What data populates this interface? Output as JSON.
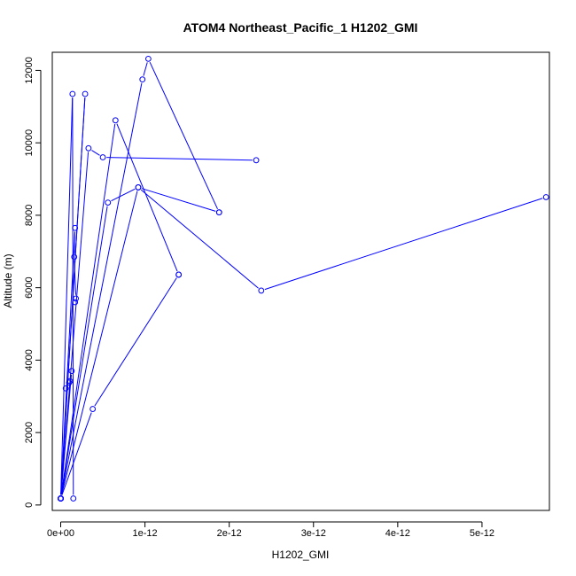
{
  "chart_data": {
    "type": "line",
    "title": "ATOM4 Northeast_Pacific_1 H1202_GMI",
    "xlabel": "H1202_GMI",
    "ylabel": "Altitude (m)",
    "xlim": [
      -1e-13,
      5.8e-12
    ],
    "ylim": [
      -150,
      12500
    ],
    "x_ticks": [
      {
        "value": 0,
        "label": "0e+00"
      },
      {
        "value": 1e-12,
        "label": "1e-12"
      },
      {
        "value": 2e-12,
        "label": "2e-12"
      },
      {
        "value": 3e-12,
        "label": "3e-12"
      },
      {
        "value": 4e-12,
        "label": "4e-12"
      },
      {
        "value": 5e-12,
        "label": "5e-12"
      }
    ],
    "y_ticks": [
      {
        "value": 0,
        "label": "0"
      },
      {
        "value": 2000,
        "label": "2000"
      },
      {
        "value": 4000,
        "label": "4000"
      },
      {
        "value": 6000,
        "label": "6000"
      },
      {
        "value": 8000,
        "label": "8000"
      },
      {
        "value": 10000,
        "label": "10000"
      },
      {
        "value": 12000,
        "label": "12000"
      }
    ],
    "grid": false,
    "legend": "none",
    "color": "#0000ff",
    "series": [
      {
        "x": [
          0,
          1.4e-13,
          1.5e-13
        ],
        "y": [
          180,
          11350,
          180
        ]
      },
      {
        "x": [
          0,
          2.9e-13,
          0.0
        ],
        "y": [
          180,
          11350,
          180
        ]
      },
      {
        "x": [
          0,
          9.7e-13,
          1.04e-12,
          1.88e-12
        ],
        "y": [
          180,
          11750,
          12320,
          8080
        ]
      },
      {
        "x": [
          0,
          6.5e-13,
          1.4e-12
        ],
        "y": [
          180,
          10620,
          6360
        ]
      },
      {
        "x": [
          0,
          3.3e-13,
          5e-13,
          2.32e-12
        ],
        "y": [
          180,
          9850,
          9600,
          9520
        ]
      },
      {
        "x": [
          0,
          5.6e-13,
          9.2e-13,
          1.88e-12
        ],
        "y": [
          180,
          8350,
          8770,
          8080
        ]
      },
      {
        "x": [
          0,
          9.2e-13,
          2.38e-12,
          5.76e-12
        ],
        "y": [
          180,
          8770,
          5920,
          8500
        ]
      },
      {
        "x": [
          0,
          1.7e-13,
          1.6e-13,
          1.8e-13,
          1.7e-13
        ],
        "y": [
          180,
          7650,
          6850,
          5700,
          5600
        ]
      },
      {
        "x": [
          0,
          1.3e-13,
          1.1e-13,
          1e-13,
          6e-14
        ],
        "y": [
          180,
          3700,
          3420,
          3380,
          3220
        ]
      },
      {
        "x": [
          0,
          3.8e-13,
          1.4e-12
        ],
        "y": [
          180,
          2650,
          6360
        ]
      },
      {
        "x": [
          0,
          0.0
        ],
        "y": [
          180,
          180
        ]
      }
    ]
  }
}
